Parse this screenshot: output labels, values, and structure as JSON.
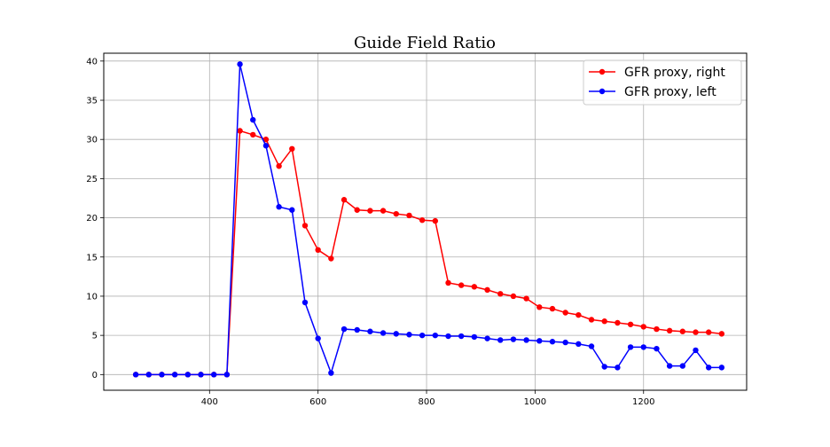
{
  "chart_data": {
    "type": "line",
    "title": "Guide Field Ratio",
    "xlabel": "",
    "ylabel": "",
    "xlim": [
      205,
      1390
    ],
    "ylim": [
      -2,
      41
    ],
    "x_ticks": [
      400,
      600,
      800,
      1000,
      1200
    ],
    "y_ticks": [
      0,
      5,
      10,
      15,
      20,
      25,
      30,
      35,
      40
    ],
    "grid": true,
    "legend_position": "top-right",
    "series": [
      {
        "name": "GFR proxy, right",
        "color": "#ff0000",
        "x": [
          264,
          288,
          312,
          336,
          360,
          384,
          408,
          432,
          456,
          480,
          504,
          528,
          552,
          576,
          600,
          624,
          648,
          672,
          696,
          720,
          744,
          768,
          792,
          816,
          840,
          864,
          888,
          912,
          936,
          960,
          984,
          1008,
          1032,
          1056,
          1080,
          1104,
          1128,
          1152,
          1176,
          1200,
          1224,
          1248,
          1272,
          1296,
          1320,
          1344
        ],
        "values": [
          0,
          0,
          0,
          0,
          0,
          0,
          0,
          0,
          31.1,
          30.6,
          30.0,
          26.6,
          28.8,
          19.0,
          15.9,
          14.8,
          22.3,
          21.0,
          20.9,
          20.9,
          20.5,
          20.3,
          19.7,
          19.6,
          11.7,
          11.4,
          11.2,
          10.8,
          10.3,
          10.0,
          9.7,
          8.6,
          8.4,
          7.9,
          7.6,
          7.0,
          6.8,
          6.6,
          6.4,
          6.1,
          5.8,
          5.6,
          5.5,
          5.4,
          5.4,
          5.2
        ]
      },
      {
        "name": "GFR proxy, left",
        "color": "#0000ff",
        "x": [
          264,
          288,
          312,
          336,
          360,
          384,
          408,
          432,
          456,
          480,
          504,
          528,
          552,
          576,
          600,
          624,
          648,
          672,
          696,
          720,
          744,
          768,
          792,
          816,
          840,
          864,
          888,
          912,
          936,
          960,
          984,
          1008,
          1032,
          1056,
          1080,
          1104,
          1128,
          1152,
          1176,
          1200,
          1224,
          1248,
          1272,
          1296,
          1320,
          1344
        ],
        "values": [
          0,
          0,
          0,
          0,
          0,
          0,
          0,
          0,
          39.6,
          32.5,
          29.2,
          21.4,
          21.0,
          9.2,
          4.6,
          0.2,
          5.8,
          5.7,
          5.5,
          5.3,
          5.2,
          5.1,
          5.0,
          5.0,
          4.9,
          4.9,
          4.8,
          4.6,
          4.4,
          4.5,
          4.4,
          4.3,
          4.2,
          4.1,
          3.9,
          3.6,
          1.0,
          0.9,
          3.5,
          3.5,
          3.3,
          1.1,
          1.1,
          3.1,
          0.9,
          0.9
        ]
      }
    ]
  }
}
